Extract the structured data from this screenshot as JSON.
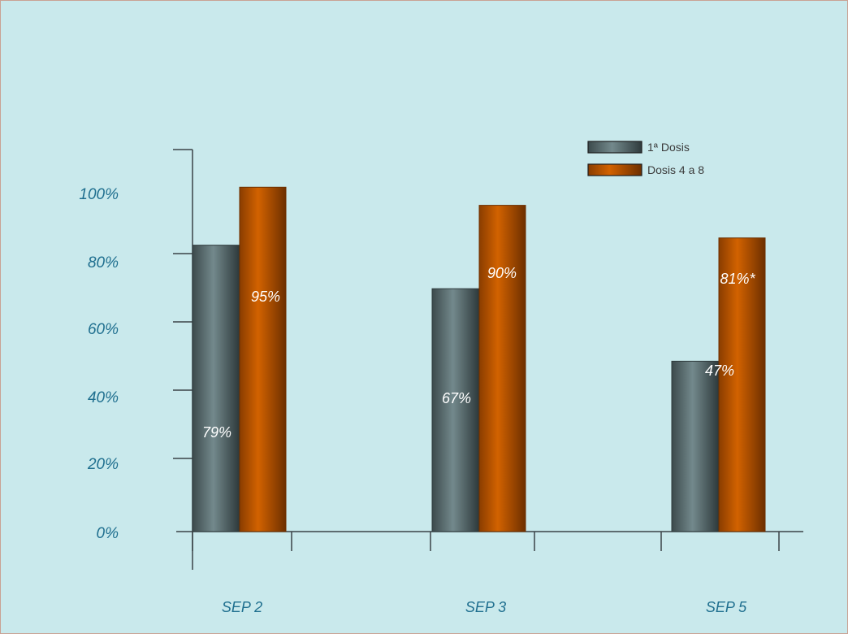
{
  "colors": {
    "background": "#c9e9ec",
    "border": "#c9a294",
    "axis": "#3a4347",
    "tick_text": "#1f6f8f",
    "series_1": "#5f7477",
    "series_2": "#c45a00"
  },
  "chart_data": {
    "type": "bar",
    "categories": [
      "SEP 2",
      "SEP 3",
      "SEP 5"
    ],
    "series": [
      {
        "name": "1ª Dosis",
        "values": [
          79,
          67,
          47
        ],
        "labels": [
          "79%",
          "67%",
          "47%"
        ]
      },
      {
        "name": "Dosis 4 a 8",
        "values": [
          95,
          90,
          81
        ],
        "labels": [
          "95%",
          "90%",
          "81%*"
        ]
      }
    ],
    "y_ticks": [
      "0%",
      "20%",
      "40%",
      "60%",
      "80%",
      "100%"
    ],
    "ylim": [
      0,
      100
    ],
    "title": "",
    "xlabel": "",
    "ylabel": "",
    "legend_position": "top-right",
    "grid": false
  }
}
